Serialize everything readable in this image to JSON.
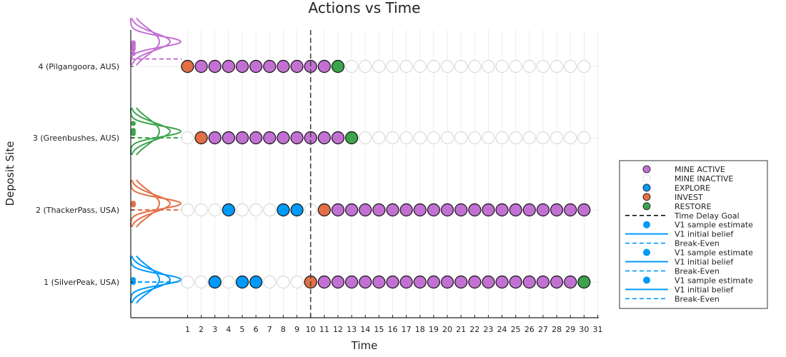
{
  "colors": {
    "mine_active": "#c271d2",
    "mine_inactive": "#ffffff",
    "explore": "#009af9",
    "invest": "#e26f46",
    "restore": "#3da44d",
    "site_4": "#c271d2",
    "site_3": "#3da44d",
    "site_2": "#e26f46",
    "site_1": "#009af9"
  },
  "chart_data": {
    "type": "scatter",
    "title": "Actions vs Time",
    "xlabel": "Time",
    "ylabel": "Deposit Site",
    "xlim": [
      0,
      31
    ],
    "x_ticks": [
      1,
      2,
      3,
      4,
      5,
      6,
      7,
      8,
      9,
      10,
      11,
      12,
      13,
      14,
      15,
      16,
      17,
      18,
      19,
      20,
      21,
      22,
      23,
      24,
      25,
      26,
      27,
      28,
      29,
      30,
      31
    ],
    "y_ticks": [
      1,
      2,
      3,
      4
    ],
    "y_tick_labels": [
      "1 (SilverPeak, USA)",
      "2 (ThackerPass, USA)",
      "3 (Greenbushes, AUS)",
      "4 (Pilgangoora, AUS)"
    ],
    "time_delay_goal": 10,
    "grid": true,
    "legend_position": "outer right",
    "sites": [
      {
        "site": 4,
        "color_key": "site_4",
        "actions": [
          "INVEST",
          "MINE ACTIVE",
          "MINE ACTIVE",
          "MINE ACTIVE",
          "MINE ACTIVE",
          "MINE ACTIVE",
          "MINE ACTIVE",
          "MINE ACTIVE",
          "MINE ACTIVE",
          "MINE ACTIVE",
          "MINE ACTIVE",
          "RESTORE",
          "MINE INACTIVE",
          "MINE INACTIVE",
          "MINE INACTIVE",
          "MINE INACTIVE",
          "MINE INACTIVE",
          "MINE INACTIVE",
          "MINE INACTIVE",
          "MINE INACTIVE",
          "MINE INACTIVE",
          "MINE INACTIVE",
          "MINE INACTIVE",
          "MINE INACTIVE",
          "MINE INACTIVE",
          "MINE INACTIVE",
          "MINE INACTIVE",
          "MINE INACTIVE",
          "MINE INACTIVE",
          "MINE INACTIVE"
        ],
        "sample_estimates": [
          0.95,
          0.88,
          0.78,
          0.7,
          0.52
        ],
        "initial_belief_peak": 1.0,
        "break_even": 0.3
      },
      {
        "site": 3,
        "color_key": "site_3",
        "actions": [
          "MINE INACTIVE",
          "INVEST",
          "MINE ACTIVE",
          "MINE ACTIVE",
          "MINE ACTIVE",
          "MINE ACTIVE",
          "MINE ACTIVE",
          "MINE ACTIVE",
          "MINE ACTIVE",
          "MINE ACTIVE",
          "MINE ACTIVE",
          "MINE ACTIVE",
          "RESTORE",
          "MINE INACTIVE",
          "MINE INACTIVE",
          "MINE INACTIVE",
          "MINE INACTIVE",
          "MINE INACTIVE",
          "MINE INACTIVE",
          "MINE INACTIVE",
          "MINE INACTIVE",
          "MINE INACTIVE",
          "MINE INACTIVE",
          "MINE INACTIVE",
          "MINE INACTIVE",
          "MINE INACTIVE",
          "MINE INACTIVE",
          "MINE INACTIVE",
          "MINE INACTIVE",
          "MINE INACTIVE"
        ],
        "sample_estimates": [
          0.58,
          0.3,
          0.19,
          0.17
        ],
        "initial_belief_peak": 0.26,
        "break_even": 0.0
      },
      {
        "site": 2,
        "color_key": "site_2",
        "actions": [
          "MINE INACTIVE",
          "MINE INACTIVE",
          "MINE INACTIVE",
          "EXPLORE",
          "MINE INACTIVE",
          "MINE INACTIVE",
          "MINE INACTIVE",
          "EXPLORE",
          "EXPLORE",
          "MINE INACTIVE",
          "INVEST",
          "MINE ACTIVE",
          "MINE ACTIVE",
          "MINE ACTIVE",
          "MINE ACTIVE",
          "MINE ACTIVE",
          "MINE ACTIVE",
          "MINE ACTIVE",
          "MINE ACTIVE",
          "MINE ACTIVE",
          "MINE ACTIVE",
          "MINE ACTIVE",
          "MINE ACTIVE",
          "MINE ACTIVE",
          "MINE ACTIVE",
          "MINE ACTIVE",
          "MINE ACTIVE",
          "MINE ACTIVE",
          "MINE ACTIVE",
          "MINE ACTIVE"
        ],
        "sample_estimates": [
          0.27,
          0.24,
          0.22,
          0.2
        ],
        "initial_belief_peak": 0.26,
        "break_even": 0.0
      },
      {
        "site": 1,
        "color_key": "site_1",
        "actions": [
          "MINE INACTIVE",
          "MINE INACTIVE",
          "EXPLORE",
          "MINE INACTIVE",
          "EXPLORE",
          "EXPLORE",
          "MINE INACTIVE",
          "MINE INACTIVE",
          "MINE INACTIVE",
          "INVEST",
          "MINE ACTIVE",
          "MINE ACTIVE",
          "MINE ACTIVE",
          "MINE ACTIVE",
          "MINE ACTIVE",
          "MINE ACTIVE",
          "MINE ACTIVE",
          "MINE ACTIVE",
          "MINE ACTIVE",
          "MINE ACTIVE",
          "MINE ACTIVE",
          "MINE ACTIVE",
          "MINE ACTIVE",
          "MINE ACTIVE",
          "MINE ACTIVE",
          "MINE ACTIVE",
          "MINE ACTIVE",
          "MINE ACTIVE",
          "MINE ACTIVE",
          "RESTORE"
        ],
        "sample_estimates": [
          0.1,
          0.05,
          0.01,
          -0.02
        ],
        "initial_belief_peak": 0.1,
        "break_even": 0.0
      }
    ],
    "legend": [
      {
        "label": "MINE ACTIVE",
        "kind": "marker",
        "color_key": "mine_active"
      },
      {
        "label": "MINE INACTIVE",
        "kind": "marker",
        "color_key": "mine_inactive"
      },
      {
        "label": "EXPLORE",
        "kind": "marker",
        "color_key": "explore"
      },
      {
        "label": "INVEST",
        "kind": "marker",
        "color_key": "invest"
      },
      {
        "label": "RESTORE",
        "kind": "marker",
        "color_key": "restore"
      },
      {
        "label": "Time Delay Goal",
        "kind": "dashed-black"
      },
      {
        "label": "V1 sample estimate",
        "kind": "dot",
        "color_key": "site_1"
      },
      {
        "label": "V1 initial belief",
        "kind": "solid",
        "color_key": "site_1"
      },
      {
        "label": "Break-Even",
        "kind": "dashed",
        "color_key": "site_1"
      },
      {
        "label": "V1 sample estimate",
        "kind": "dot",
        "color_key": "site_1"
      },
      {
        "label": "V1 initial belief",
        "kind": "solid",
        "color_key": "site_1"
      },
      {
        "label": "Break-Even",
        "kind": "dashed",
        "color_key": "site_1"
      },
      {
        "label": "V1 sample estimate",
        "kind": "dot",
        "color_key": "site_1"
      },
      {
        "label": "V1 initial belief",
        "kind": "solid",
        "color_key": "site_1"
      },
      {
        "label": "Break-Even",
        "kind": "dashed",
        "color_key": "site_1"
      }
    ]
  }
}
